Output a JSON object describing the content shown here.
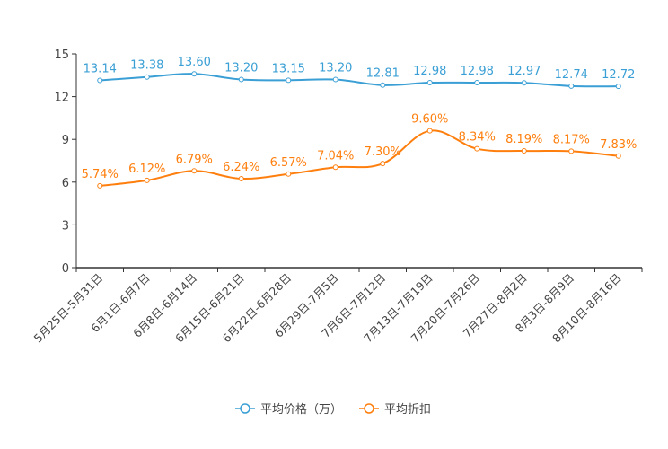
{
  "chart_data": {
    "type": "line",
    "categories": [
      "5月25日-5月31日",
      "6月1日-6月7日",
      "6月8日-6月14日",
      "6月15日-6月21日",
      "6月22日-6月28日",
      "6月29日-7月5日",
      "7月6日-7月12日",
      "7月13日-7月19日",
      "7月20日-7月26日",
      "7月27日-8月2日",
      "8月3日-8月9日",
      "8月10日-8月16日"
    ],
    "series": [
      {
        "name": "平均价格（万）",
        "color": "#3a9fd5",
        "values": [
          13.14,
          13.38,
          13.6,
          13.2,
          13.15,
          13.2,
          12.81,
          12.98,
          12.98,
          12.97,
          12.74,
          12.72
        ],
        "labels": [
          "13.14",
          "13.38",
          "13.60",
          "13.20",
          "13.15",
          "13.20",
          "12.81",
          "12.98",
          "12.98",
          "12.97",
          "12.74",
          "12.72"
        ]
      },
      {
        "name": "平均折扣",
        "color": "#ff7f0e",
        "values": [
          5.74,
          6.12,
          6.79,
          6.24,
          6.57,
          7.04,
          7.3,
          9.6,
          8.34,
          8.19,
          8.17,
          7.83
        ],
        "labels": [
          "5.74%",
          "6.12%",
          "6.79%",
          "6.24%",
          "6.57%",
          "7.04%",
          "7.30%",
          "9.60%",
          "8.34%",
          "8.19%",
          "8.17%",
          "7.83%"
        ]
      }
    ],
    "yticks": [
      "0",
      "3",
      "6",
      "9",
      "12",
      "15"
    ],
    "ylim": [
      0,
      15
    ],
    "legend": "bottom",
    "xlabel": "",
    "ylabel": ""
  }
}
